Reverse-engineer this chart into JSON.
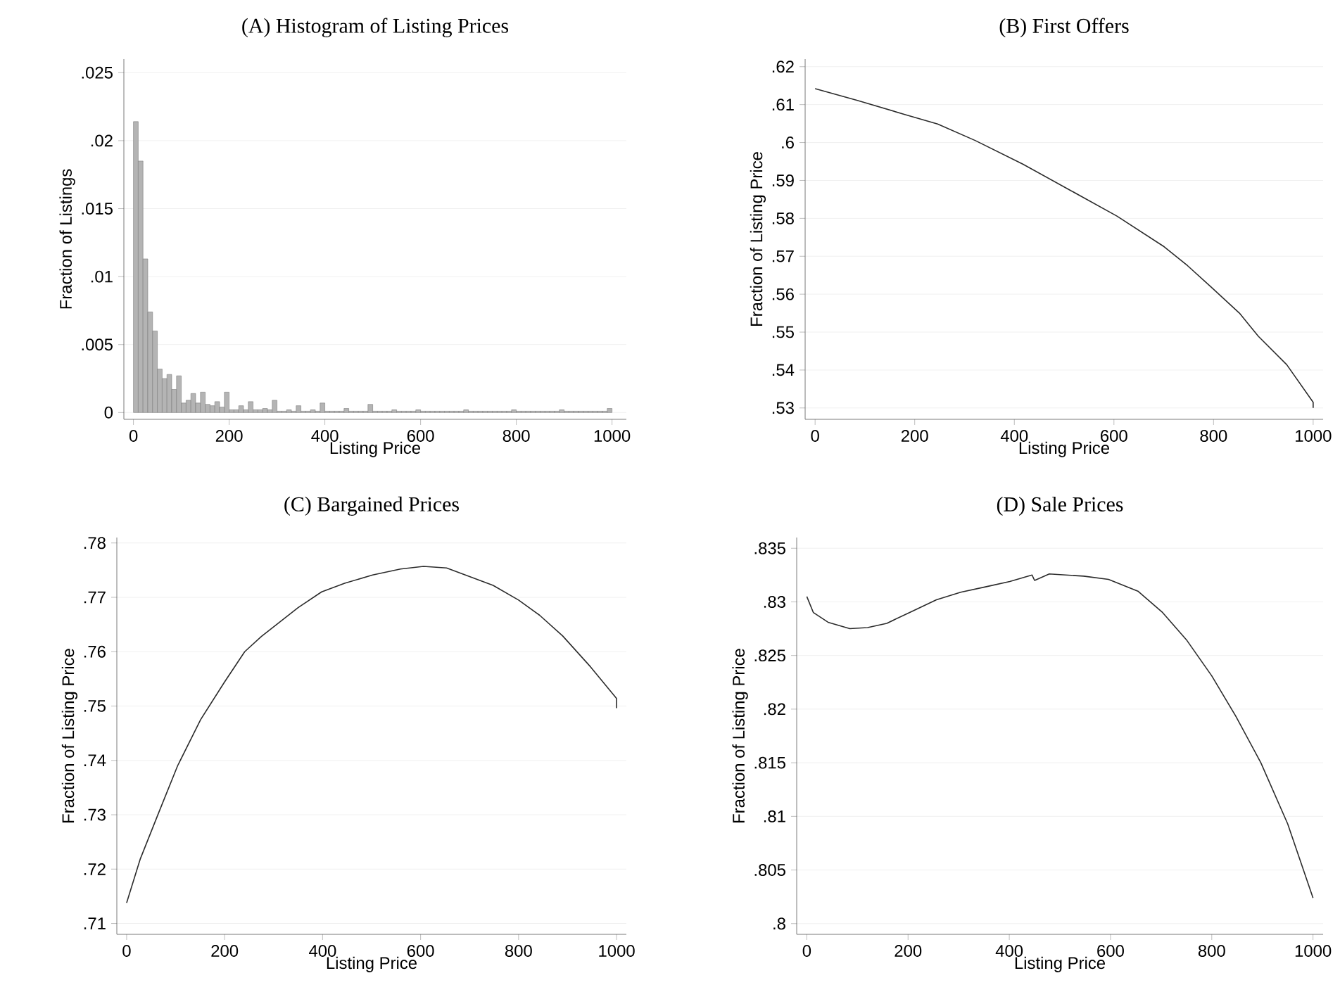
{
  "chart_data": [
    {
      "type": "histogram",
      "title": "(A) Histogram of Listing Prices",
      "xlabel": "Listing Price",
      "ylabel": "Fraction of Listings",
      "color": "#b4b4b4",
      "grid": "y",
      "bins": [
        0,
        10,
        20,
        30,
        40,
        50,
        60,
        70,
        80,
        90,
        100,
        110,
        120,
        130,
        140,
        150,
        160,
        170,
        180,
        190,
        200,
        210,
        220,
        230,
        240,
        250,
        260,
        270,
        280,
        290,
        300,
        310,
        320,
        330,
        340,
        350,
        360,
        370,
        380,
        390,
        400,
        410,
        420,
        430,
        440,
        450,
        460,
        470,
        480,
        490,
        500,
        510,
        520,
        530,
        540,
        550,
        560,
        570,
        580,
        590,
        600,
        610,
        620,
        630,
        640,
        650,
        660,
        670,
        680,
        690,
        700,
        710,
        720,
        730,
        740,
        750,
        760,
        770,
        780,
        790,
        800,
        810,
        820,
        830,
        840,
        850,
        860,
        870,
        880,
        890,
        900,
        910,
        920,
        930,
        940,
        950,
        960,
        970,
        980,
        990,
        1000
      ],
      "values": [
        0.0214,
        0.0185,
        0.0113,
        0.0074,
        0.006,
        0.0032,
        0.0025,
        0.0028,
        0.0017,
        0.0027,
        0.0007,
        0.0009,
        0.0014,
        0.0007,
        0.0015,
        0.0006,
        0.0005,
        0.0008,
        0.0004,
        0.0015,
        0.0002,
        0.0002,
        0.0005,
        0.0002,
        0.0008,
        0.0002,
        0.0002,
        0.0003,
        0.0002,
        0.0009,
        0.0001,
        0.0001,
        0.0002,
        0.0001,
        0.0005,
        0.0001,
        0.0001,
        0.0002,
        0.0001,
        0.0007,
        0.0001,
        0.0001,
        0.0001,
        0.0001,
        0.0003,
        0.0001,
        0.0001,
        0.0001,
        0.0001,
        0.0006,
        0.0001,
        0.0001,
        0.0001,
        0.0001,
        0.0002,
        0.0001,
        0.0001,
        0.0001,
        0.0001,
        0.0002,
        0.0001,
        0.0001,
        0.0001,
        0.0001,
        0.0001,
        0.0001,
        0.0001,
        0.0001,
        0.0001,
        0.0002,
        0.0001,
        0.0001,
        0.0001,
        0.0001,
        0.0001,
        0.0001,
        0.0001,
        0.0001,
        0.0001,
        0.0002,
        0.0001,
        0.0001,
        0.0001,
        0.0001,
        0.0001,
        0.0001,
        0.0001,
        0.0001,
        0.0001,
        0.0002,
        0.0001,
        0.0001,
        0.0001,
        0.0001,
        0.0001,
        0.0001,
        0.0001,
        0.0001,
        0.0001,
        0.0003
      ],
      "xlim": [
        -20,
        1030
      ],
      "ylim": [
        -0.0005,
        0.026
      ],
      "xticks": [
        0,
        200,
        400,
        600,
        800,
        1000
      ],
      "yticks": [
        0,
        {
          "value": 0.005,
          "label": ".005"
        },
        {
          "value": 0.01,
          "label": ".01"
        },
        {
          "value": 0.015,
          "label": ".015"
        },
        {
          "value": 0.02,
          "label": ".02"
        },
        {
          "value": 0.025,
          "label": ".025"
        }
      ]
    },
    {
      "type": "line",
      "title": "(B) First Offers",
      "xlabel": "Listing Price",
      "ylabel": "Fraction of Listing Price",
      "color": "#2b2b2b",
      "grid": "y",
      "x": [
        0,
        85,
        180,
        246,
        322,
        417,
        511,
        606,
        701,
        748,
        795,
        852,
        890,
        947,
        1000,
        1000
      ],
      "values": [
        0.6142,
        0.6111,
        0.6074,
        0.6049,
        0.6005,
        0.5943,
        0.5875,
        0.5806,
        0.5725,
        0.5675,
        0.5619,
        0.555,
        0.5489,
        0.5414,
        0.5315,
        0.53
      ],
      "xlim": [
        -20,
        1020
      ],
      "ylim": [
        0.527,
        0.622
      ],
      "xticks": [
        0,
        200,
        400,
        600,
        800,
        1000
      ],
      "yticks": [
        {
          "value": 0.53,
          "label": ".53"
        },
        {
          "value": 0.54,
          "label": ".54"
        },
        {
          "value": 0.55,
          "label": ".55"
        },
        {
          "value": 0.56,
          "label": ".56"
        },
        {
          "value": 0.57,
          "label": ".57"
        },
        {
          "value": 0.58,
          "label": ".58"
        },
        {
          "value": 0.59,
          "label": ".59"
        },
        {
          "value": 0.6,
          "label": ".6"
        },
        {
          "value": 0.61,
          "label": ".61"
        },
        {
          "value": 0.62,
          "label": ".62"
        }
      ]
    },
    {
      "type": "line",
      "title": "(C) Bargained Prices",
      "xlabel": "Listing Price",
      "ylabel": "Fraction of Listing Price",
      "color": "#2b2b2b",
      "grid": "y",
      "x": [
        0,
        28,
        66,
        104,
        151,
        199,
        241,
        275,
        350,
        398,
        445,
        502,
        559,
        606,
        653,
        701,
        748,
        800,
        843,
        890,
        947,
        1000,
        1000
      ],
      "values": [
        0.7138,
        0.7219,
        0.7305,
        0.739,
        0.7475,
        0.7543,
        0.76,
        0.7628,
        0.7681,
        0.771,
        0.7726,
        0.7741,
        0.7752,
        0.7757,
        0.7754,
        0.7738,
        0.7722,
        0.7695,
        0.7667,
        0.7629,
        0.7572,
        0.7514,
        0.7496
      ],
      "xlim": [
        -20,
        1020
      ],
      "ylim": [
        0.708,
        0.781
      ],
      "xticks": [
        0,
        200,
        400,
        600,
        800,
        1000
      ],
      "yticks": [
        {
          "value": 0.71,
          "label": ".71"
        },
        {
          "value": 0.72,
          "label": ".72"
        },
        {
          "value": 0.73,
          "label": ".73"
        },
        {
          "value": 0.74,
          "label": ".74"
        },
        {
          "value": 0.75,
          "label": ".75"
        },
        {
          "value": 0.76,
          "label": ".76"
        },
        {
          "value": 0.77,
          "label": ".77"
        },
        {
          "value": 0.78,
          "label": ".78"
        }
      ]
    },
    {
      "type": "line",
      "title": "(D) Sale Prices",
      "xlabel": "Listing Price",
      "ylabel": "Fraction of Listing Price",
      "color": "#2b2b2b",
      "grid": "y",
      "x": [
        0,
        13,
        42,
        85,
        120,
        158,
        207,
        256,
        304,
        353,
        401,
        445,
        450,
        479,
        547,
        596,
        654,
        703,
        751,
        800,
        848,
        897,
        950,
        1000
      ],
      "values": [
        0.8305,
        0.829,
        0.8281,
        0.8275,
        0.8276,
        0.828,
        0.8291,
        0.8302,
        0.8309,
        0.8314,
        0.8319,
        0.8325,
        0.832,
        0.8326,
        0.8324,
        0.8321,
        0.831,
        0.829,
        0.8264,
        0.8231,
        0.8193,
        0.815,
        0.8093,
        0.8024
      ],
      "xlim": [
        -20,
        1020
      ],
      "ylim": [
        0.799,
        0.836
      ],
      "xticks": [
        0,
        200,
        400,
        600,
        800,
        1000
      ],
      "yticks": [
        {
          "value": 0.8,
          "label": ".8"
        },
        {
          "value": 0.805,
          "label": ".805"
        },
        {
          "value": 0.81,
          "label": ".81"
        },
        {
          "value": 0.815,
          "label": ".815"
        },
        {
          "value": 0.82,
          "label": ".82"
        },
        {
          "value": 0.825,
          "label": ".825"
        },
        {
          "value": 0.83,
          "label": ".83"
        },
        {
          "value": 0.835,
          "label": ".835"
        }
      ]
    }
  ]
}
